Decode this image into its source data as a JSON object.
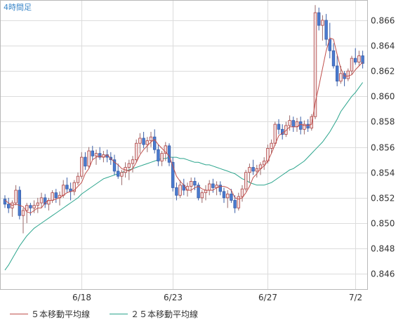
{
  "chart_data": {
    "type": "candlestick",
    "title": "4時間足",
    "x_tick_labels": [
      {
        "label": "6/18",
        "index": 21
      },
      {
        "label": "6/23",
        "index": 46
      },
      {
        "label": "6/27",
        "index": 72
      },
      {
        "label": "7/2",
        "index": 96
      }
    ],
    "ylim": [
      0.8448,
      0.8676
    ],
    "y_ticks": [
      {
        "value": 0.866,
        "label": "0.866"
      },
      {
        "value": 0.864,
        "label": "0.864"
      },
      {
        "value": 0.862,
        "label": "0.862"
      },
      {
        "value": 0.86,
        "label": "0.860"
      },
      {
        "value": 0.858,
        "label": "0.858"
      },
      {
        "value": 0.856,
        "label": "0.856"
      },
      {
        "value": 0.854,
        "label": "0.854"
      },
      {
        "value": 0.852,
        "label": "0.852"
      },
      {
        "value": 0.85,
        "label": "0.850"
      },
      {
        "value": 0.848,
        "label": "0.848"
      },
      {
        "value": 0.846,
        "label": "0.846"
      }
    ],
    "grid": true,
    "legend": [
      {
        "name": "５本移動平均線",
        "color": "#c0504d"
      },
      {
        "name": "２５本移動平均線",
        "color": "#2ca58d"
      }
    ],
    "colors": {
      "up": "#f2e3e3",
      "up_border": "#b04040",
      "down": "#4a7bd0",
      "down_border": "#3a5fa8",
      "wick": "#9a6a6a"
    },
    "candles": [
      [
        0.8519,
        0.8522,
        0.8512,
        0.8515
      ],
      [
        0.8515,
        0.852,
        0.8508,
        0.8512
      ],
      [
        0.8512,
        0.8518,
        0.8505,
        0.8516
      ],
      [
        0.8516,
        0.853,
        0.8514,
        0.8526
      ],
      [
        0.8526,
        0.8529,
        0.8503,
        0.8506
      ],
      [
        0.8506,
        0.8512,
        0.8492,
        0.851
      ],
      [
        0.851,
        0.8516,
        0.85,
        0.8514
      ],
      [
        0.8514,
        0.8516,
        0.8506,
        0.8512
      ],
      [
        0.8512,
        0.8518,
        0.8508,
        0.8514
      ],
      [
        0.8514,
        0.852,
        0.8508,
        0.8516
      ],
      [
        0.8516,
        0.8524,
        0.8512,
        0.852
      ],
      [
        0.852,
        0.8523,
        0.8512,
        0.8515
      ],
      [
        0.8515,
        0.852,
        0.851,
        0.8518
      ],
      [
        0.8518,
        0.8526,
        0.8516,
        0.8524
      ],
      [
        0.8524,
        0.8527,
        0.8516,
        0.852
      ],
      [
        0.852,
        0.8525,
        0.8514,
        0.8522
      ],
      [
        0.8522,
        0.8534,
        0.852,
        0.853
      ],
      [
        0.853,
        0.8536,
        0.8524,
        0.8527
      ],
      [
        0.8527,
        0.8532,
        0.8518,
        0.8525
      ],
      [
        0.8525,
        0.8534,
        0.8522,
        0.8532
      ],
      [
        0.8532,
        0.854,
        0.853,
        0.8537
      ],
      [
        0.8537,
        0.8556,
        0.8535,
        0.8552
      ],
      [
        0.8552,
        0.8556,
        0.8542,
        0.8545
      ],
      [
        0.8545,
        0.856,
        0.8543,
        0.8557
      ],
      [
        0.8557,
        0.8561,
        0.855,
        0.8553
      ],
      [
        0.8553,
        0.8558,
        0.8546,
        0.8555
      ],
      [
        0.8555,
        0.856,
        0.855,
        0.8552
      ],
      [
        0.8552,
        0.8557,
        0.8548,
        0.8554
      ],
      [
        0.8554,
        0.8558,
        0.8548,
        0.8552
      ],
      [
        0.8552,
        0.8556,
        0.8546,
        0.855
      ],
      [
        0.855,
        0.8554,
        0.8538,
        0.8541
      ],
      [
        0.8541,
        0.8547,
        0.8535,
        0.8537
      ],
      [
        0.8537,
        0.8542,
        0.853,
        0.854
      ],
      [
        0.854,
        0.8548,
        0.8536,
        0.8544
      ],
      [
        0.8544,
        0.855,
        0.8534,
        0.8547
      ],
      [
        0.8547,
        0.8553,
        0.854,
        0.855
      ],
      [
        0.855,
        0.8566,
        0.8548,
        0.8563
      ],
      [
        0.8563,
        0.8571,
        0.8555,
        0.8567
      ],
      [
        0.8567,
        0.8572,
        0.8559,
        0.8562
      ],
      [
        0.8562,
        0.8568,
        0.8556,
        0.8565
      ],
      [
        0.8565,
        0.8572,
        0.856,
        0.8568
      ],
      [
        0.8568,
        0.8574,
        0.8555,
        0.8558
      ],
      [
        0.8558,
        0.8562,
        0.8545,
        0.8549
      ],
      [
        0.8549,
        0.8557,
        0.8545,
        0.8555
      ],
      [
        0.8555,
        0.8564,
        0.8549,
        0.8561
      ],
      [
        0.8561,
        0.8563,
        0.8545,
        0.8548
      ],
      [
        0.8548,
        0.8552,
        0.8525,
        0.8528
      ],
      [
        0.8528,
        0.8532,
        0.8518,
        0.8522
      ],
      [
        0.8522,
        0.8534,
        0.852,
        0.853
      ],
      [
        0.853,
        0.8535,
        0.8522,
        0.8526
      ],
      [
        0.8526,
        0.8532,
        0.8521,
        0.8529
      ],
      [
        0.8529,
        0.8536,
        0.8524,
        0.8533
      ],
      [
        0.8533,
        0.8536,
        0.8526,
        0.853
      ],
      [
        0.853,
        0.8532,
        0.8518,
        0.852
      ],
      [
        0.852,
        0.8526,
        0.8516,
        0.8524
      ],
      [
        0.8524,
        0.853,
        0.8518,
        0.8526
      ],
      [
        0.8526,
        0.8534,
        0.8522,
        0.8531
      ],
      [
        0.8531,
        0.8535,
        0.8524,
        0.8528
      ],
      [
        0.8528,
        0.8533,
        0.8522,
        0.853
      ],
      [
        0.853,
        0.8533,
        0.8522,
        0.8525
      ],
      [
        0.8525,
        0.8528,
        0.8516,
        0.852
      ],
      [
        0.852,
        0.8526,
        0.8512,
        0.8523
      ],
      [
        0.8523,
        0.8527,
        0.8516,
        0.8518
      ],
      [
        0.8518,
        0.8522,
        0.8508,
        0.8512
      ],
      [
        0.8512,
        0.8524,
        0.851,
        0.8521
      ],
      [
        0.8521,
        0.853,
        0.8517,
        0.8527
      ],
      [
        0.8527,
        0.8542,
        0.8525,
        0.854
      ],
      [
        0.854,
        0.8547,
        0.8532,
        0.8544
      ],
      [
        0.8544,
        0.855,
        0.8538,
        0.8541
      ],
      [
        0.8541,
        0.8546,
        0.8536,
        0.8543
      ],
      [
        0.8543,
        0.8548,
        0.8538,
        0.8546
      ],
      [
        0.8546,
        0.8552,
        0.8542,
        0.8549
      ],
      [
        0.8549,
        0.8562,
        0.8547,
        0.8559
      ],
      [
        0.8559,
        0.8566,
        0.8555,
        0.8563
      ],
      [
        0.8563,
        0.858,
        0.8561,
        0.8578
      ],
      [
        0.8578,
        0.8582,
        0.857,
        0.8574
      ],
      [
        0.8574,
        0.8578,
        0.8566,
        0.857
      ],
      [
        0.857,
        0.858,
        0.8568,
        0.8577
      ],
      [
        0.8577,
        0.8585,
        0.8573,
        0.8581
      ],
      [
        0.8581,
        0.8584,
        0.8572,
        0.8576
      ],
      [
        0.8576,
        0.8583,
        0.8572,
        0.858
      ],
      [
        0.858,
        0.8584,
        0.857,
        0.8574
      ],
      [
        0.8574,
        0.8581,
        0.857,
        0.8578
      ],
      [
        0.8578,
        0.8582,
        0.8572,
        0.8575
      ],
      [
        0.8575,
        0.8586,
        0.8573,
        0.8584
      ],
      [
        0.8584,
        0.8672,
        0.8582,
        0.8666
      ],
      [
        0.8666,
        0.867,
        0.8652,
        0.8656
      ],
      [
        0.8656,
        0.8664,
        0.8644,
        0.866
      ],
      [
        0.866,
        0.8665,
        0.864,
        0.8645
      ],
      [
        0.8645,
        0.8658,
        0.863,
        0.8636
      ],
      [
        0.8636,
        0.8642,
        0.8622,
        0.8624
      ],
      [
        0.8624,
        0.8632,
        0.8608,
        0.8612
      ],
      [
        0.8612,
        0.8624,
        0.861,
        0.8618
      ],
      [
        0.8618,
        0.862,
        0.8608,
        0.8614
      ],
      [
        0.8614,
        0.8622,
        0.8612,
        0.862
      ],
      [
        0.862,
        0.8632,
        0.8617,
        0.863
      ],
      [
        0.863,
        0.8638,
        0.8625,
        0.8627
      ],
      [
        0.8627,
        0.8636,
        0.8624,
        0.8632
      ],
      [
        0.8632,
        0.8636,
        0.8622,
        0.8626
      ]
    ],
    "ma5": [
      0.8518,
      0.8516,
      0.8514,
      0.8515,
      0.8514,
      0.8513,
      0.8509,
      0.8508,
      0.851,
      0.8512,
      0.8512,
      0.8516,
      0.8518,
      0.8518,
      0.8519,
      0.852,
      0.8522,
      0.8524,
      0.8525,
      0.8526,
      0.8529,
      0.8532,
      0.8539,
      0.8543,
      0.855,
      0.8552,
      0.8553,
      0.8552,
      0.8554,
      0.8551,
      0.8548,
      0.8546,
      0.8543,
      0.8542,
      0.8541,
      0.8543,
      0.8548,
      0.8554,
      0.8558,
      0.8561,
      0.8564,
      0.8566,
      0.8562,
      0.8559,
      0.8556,
      0.8553,
      0.8545,
      0.8537,
      0.8533,
      0.853,
      0.8526,
      0.8526,
      0.8528,
      0.8529,
      0.8527,
      0.8526,
      0.8526,
      0.8526,
      0.8528,
      0.8529,
      0.8529,
      0.8528,
      0.8526,
      0.852,
      0.8519,
      0.852,
      0.8524,
      0.8529,
      0.8536,
      0.8539,
      0.8543,
      0.8545,
      0.8549,
      0.8555,
      0.8562,
      0.8569,
      0.8571,
      0.8573,
      0.8576,
      0.8576,
      0.8576,
      0.8578,
      0.8577,
      0.8577,
      0.8578,
      0.8595,
      0.8608,
      0.8622,
      0.8636,
      0.8646,
      0.8645,
      0.8633,
      0.8622,
      0.8616,
      0.8616,
      0.8617,
      0.8621,
      0.8624,
      0.8627
    ],
    "ma25": [
      0.8463,
      0.8467,
      0.8472,
      0.8477,
      0.8482,
      0.8486,
      0.849,
      0.8493,
      0.8496,
      0.8498,
      0.85,
      0.8502,
      0.8504,
      0.8506,
      0.8508,
      0.851,
      0.8512,
      0.8514,
      0.8516,
      0.8518,
      0.852,
      0.8523,
      0.8525,
      0.8527,
      0.8529,
      0.8531,
      0.8533,
      0.8535,
      0.8536,
      0.8537,
      0.8538,
      0.8539,
      0.854,
      0.8541,
      0.8542,
      0.8543,
      0.8544,
      0.8545,
      0.8546,
      0.8547,
      0.8548,
      0.8549,
      0.855,
      0.8551,
      0.8551,
      0.8552,
      0.8552,
      0.8552,
      0.8551,
      0.8551,
      0.855,
      0.8549,
      0.8548,
      0.8548,
      0.8547,
      0.8546,
      0.8546,
      0.8545,
      0.8544,
      0.8543,
      0.8542,
      0.8541,
      0.854,
      0.8539,
      0.8537,
      0.8535,
      0.8534,
      0.8532,
      0.8531,
      0.853,
      0.853,
      0.853,
      0.8531,
      0.8532,
      0.8534,
      0.8536,
      0.8538,
      0.854,
      0.8542,
      0.8543,
      0.8545,
      0.8547,
      0.8549,
      0.8552,
      0.8555,
      0.8558,
      0.8561,
      0.8564,
      0.8568,
      0.8572,
      0.8577,
      0.8582,
      0.8588,
      0.8592,
      0.8596,
      0.86,
      0.8603,
      0.8607,
      0.8611
    ]
  }
}
